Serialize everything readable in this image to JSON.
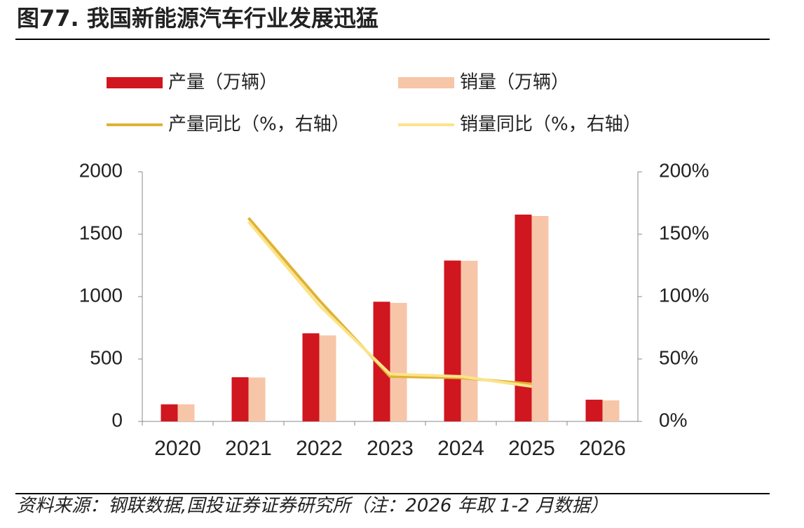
{
  "title": "图77. 我国新能源汽车行业发展迅猛",
  "source": "资料来源：钢联数据,国投证券证券研究所（注：2026 年取 1-2 月数据）",
  "chart_data": {
    "type": "bar",
    "categories": [
      "2020",
      "2021",
      "2022",
      "2023",
      "2024",
      "2025",
      "2026"
    ],
    "series": [
      {
        "name": "产量（万辆）",
        "type": "bar",
        "color": "#d0161f",
        "values": [
          137,
          354,
          706,
          959,
          1289,
          1657,
          174
        ]
      },
      {
        "name": "销量（万辆）",
        "type": "bar",
        "color": "#f7c5a8",
        "values": [
          137,
          352,
          689,
          950,
          1287,
          1646,
          169
        ]
      },
      {
        "name": "产量同比（%，右轴）",
        "type": "line",
        "axis": "y2",
        "color": "#e0b234",
        "values": [
          null,
          163,
          97,
          36,
          35,
          30,
          null
        ]
      },
      {
        "name": "销量同比（%，右轴）",
        "type": "line",
        "axis": "y2",
        "color": "#fbe48a",
        "values": [
          null,
          160,
          93,
          38,
          36,
          28,
          null
        ]
      }
    ],
    "ylim": [
      0,
      2000
    ],
    "yticks": [
      0,
      500,
      1000,
      1500,
      2000
    ],
    "y2lim": [
      0,
      200
    ],
    "y2ticks": [
      {
        "value": 0,
        "label": "0%"
      },
      {
        "value": 50,
        "label": "50%"
      },
      {
        "value": 100,
        "label": "100%"
      },
      {
        "value": 150,
        "label": "150%"
      },
      {
        "value": 200,
        "label": "200%"
      }
    ]
  }
}
